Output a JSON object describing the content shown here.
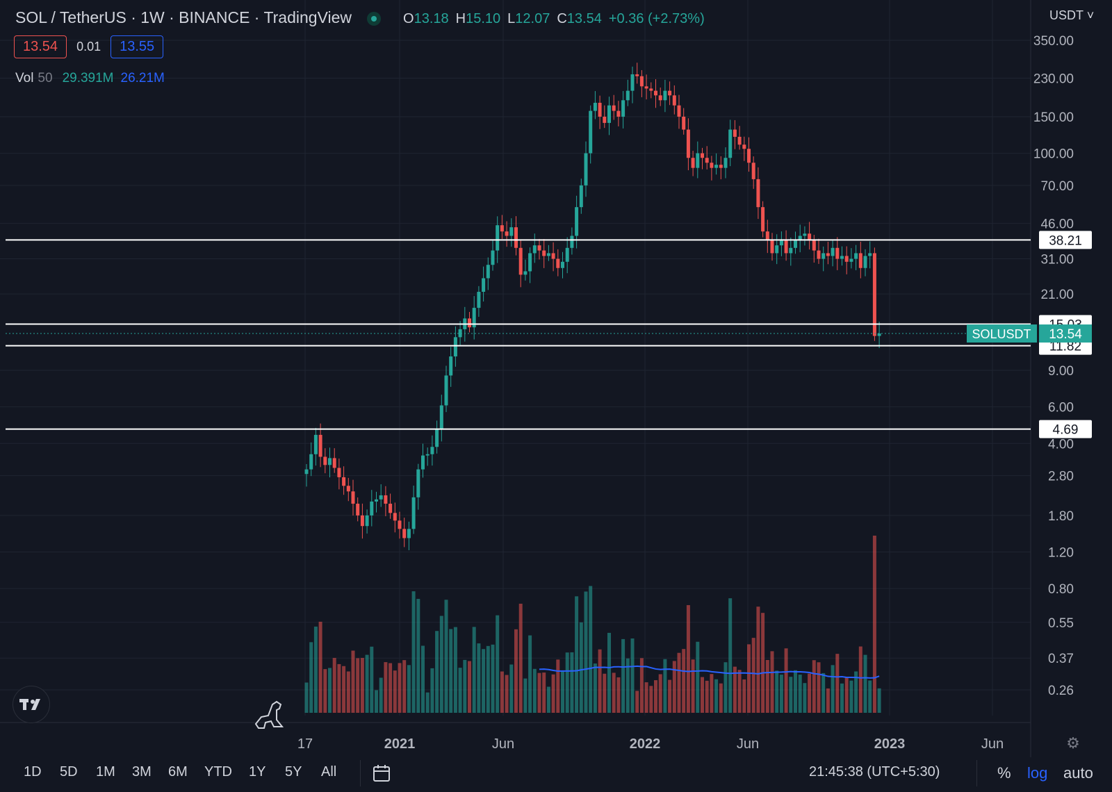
{
  "header": {
    "title": "SOL / TetherUS · 1W · BINANCE · TradingView",
    "ohlc": {
      "o_label": "O",
      "o": "13.18",
      "h_label": "H",
      "h": "15.10",
      "l_label": "L",
      "l": "12.07",
      "c_label": "C",
      "c": "13.54",
      "change": "+0.36 (+2.73%)"
    },
    "sell_price": "13.54",
    "spread": "0.01",
    "buy_price": "13.55",
    "currency": "USDT"
  },
  "volume_legend": {
    "label": "Vol",
    "period": "50",
    "volume": "29.391M",
    "ma": "26.21M"
  },
  "toolbar": {
    "timeframes": [
      "1D",
      "5D",
      "1M",
      "3M",
      "6M",
      "YTD",
      "1Y",
      "5Y",
      "All"
    ],
    "clock": "21:45:38 (UTC+5:30)",
    "percent": "%",
    "log": "log",
    "auto": "auto",
    "calendar_icon": "calendar-range-icon",
    "settings_icon": "gear-icon",
    "logo_icon": "tradingview-logo-icon",
    "dino_icon": "dinosaur-icon"
  },
  "colors": {
    "background": "#131722",
    "up": "#26a69a",
    "down": "#ef5350",
    "ma": "#2962ff",
    "line": "#ffffff"
  },
  "chart_data": {
    "type": "candlestick",
    "symbol": "SOLUSDT",
    "y_scale": "log",
    "ylim": [
      0.21,
      450
    ],
    "y_ticks": [
      "350.00",
      "230.00",
      "150.00",
      "100.00",
      "70.00",
      "46.00",
      "31.00",
      "21.00",
      "15.03",
      "13.54",
      "11.82",
      "9.00",
      "6.00",
      "4.69",
      "4.00",
      "2.80",
      "1.80",
      "1.20",
      "0.80",
      "0.55",
      "0.37",
      "0.26"
    ],
    "x_ticks": [
      "17",
      "2021",
      "Jun",
      "2022",
      "Jun",
      "2023",
      "Jun"
    ],
    "horizontal_lines": [
      38.21,
      15.03,
      11.82,
      4.69
    ],
    "last_price": 13.54,
    "last_price_label": "SOLUSDT",
    "closes": [
      3.0,
      3.55,
      4.4,
      3.45,
      3.15,
      3.4,
      3.05,
      2.75,
      2.5,
      2.35,
      2.05,
      1.8,
      1.6,
      1.8,
      2.1,
      2.15,
      2.25,
      2.05,
      1.85,
      1.7,
      1.55,
      1.4,
      1.55,
      2.2,
      3.0,
      3.5,
      3.55,
      3.85,
      4.7,
      6.1,
      8.5,
      10.5,
      13.0,
      14.2,
      16.0,
      14.5,
      18.0,
      21.5,
      25.0,
      29.0,
      34.0,
      45.0,
      42.0,
      40.0,
      44.0,
      35.0,
      26.0,
      27.0,
      33.0,
      36.0,
      34.0,
      32.0,
      33.0,
      31.0,
      28.0,
      30.0,
      35.0,
      40.0,
      55.0,
      70.0,
      100.0,
      160.0,
      175.0,
      150.0,
      140.0,
      170.0,
      160.0,
      150.0,
      180.0,
      200.0,
      240.0,
      235.0,
      210.0,
      205.0,
      200.0,
      190.0,
      180.0,
      200.0,
      190.0,
      170.0,
      150.0,
      130.0,
      95.0,
      85.0,
      100.0,
      95.0,
      90.0,
      85.0,
      88.0,
      85.0,
      95.0,
      130.0,
      120.0,
      110.0,
      105.0,
      90.0,
      75.0,
      55.0,
      42.0,
      38.0,
      33.0,
      36.0,
      38.0,
      33.0,
      35.0,
      38.0,
      40.0,
      41.0,
      38.0,
      34.0,
      31.0,
      33.0,
      32.0,
      35.0,
      31.0,
      32.0,
      30.0,
      31.0,
      33.0,
      28.0,
      32.0,
      33.0,
      13.18,
      13.54
    ],
    "volume": {
      "ma_period": 50,
      "last_volume": "29.391M",
      "last_ma": "26.21M"
    },
    "x_range": [
      "2020-08-17",
      "2023-06"
    ]
  }
}
